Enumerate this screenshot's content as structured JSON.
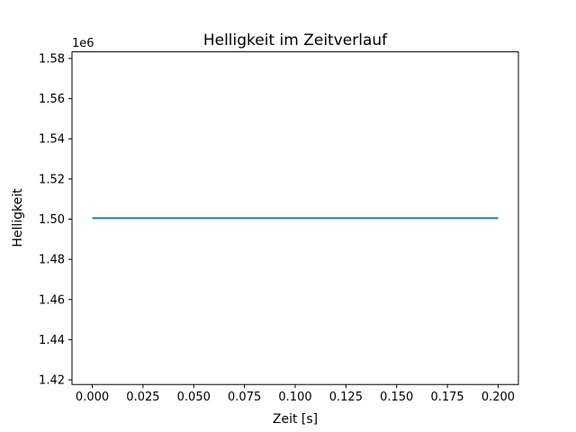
{
  "chart_data": {
    "type": "line",
    "title": "Helligkeit im Zeitverlauf",
    "xlabel": "Zeit [s]",
    "ylabel": "Helligkeit",
    "y_offset_label": "1e6",
    "xlim": [
      -0.01,
      0.21
    ],
    "ylim": [
      1417700,
      1583300
    ],
    "xticks": {
      "values": [
        0.0,
        0.025,
        0.05,
        0.075,
        0.1,
        0.125,
        0.15,
        0.175,
        0.2
      ],
      "labels": [
        "0.000",
        "0.025",
        "0.050",
        "0.075",
        "0.100",
        "0.125",
        "0.150",
        "0.175",
        "0.200"
      ]
    },
    "yticks": {
      "values": [
        1420000,
        1440000,
        1460000,
        1480000,
        1500000,
        1520000,
        1540000,
        1560000,
        1580000
      ],
      "labels": [
        "1.42",
        "1.44",
        "1.46",
        "1.48",
        "1.50",
        "1.52",
        "1.54",
        "1.56",
        "1.58"
      ]
    },
    "series": [
      {
        "name": "Helligkeit",
        "color": "#1f77b4",
        "x": [
          0.0,
          0.2
        ],
        "y": [
          1500500,
          1500500
        ]
      }
    ],
    "grid": false,
    "legend": "none",
    "background_color": "#ffffff",
    "spine_color": "#000000"
  },
  "layout_note": "constant brightness line at ~1.5005e6 across 0.0 to 0.2 s"
}
